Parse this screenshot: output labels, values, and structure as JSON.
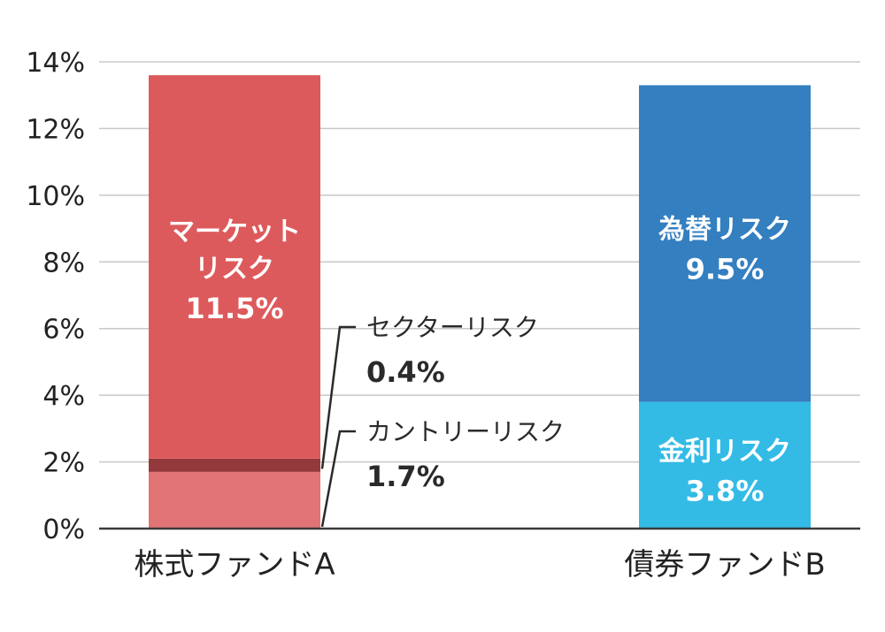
{
  "chart_data": {
    "type": "bar",
    "stacked": true,
    "title": "",
    "xlabel": "",
    "ylabel": "",
    "ylim": [
      0,
      14
    ],
    "yticks": [
      0,
      2,
      4,
      6,
      8,
      10,
      12,
      14
    ],
    "ytick_labels": [
      "0%",
      "2%",
      "4%",
      "6%",
      "8%",
      "10%",
      "12%",
      "14%"
    ],
    "grid": true,
    "categories": [
      "株式ファンドA",
      "債券ファンドB"
    ],
    "bars": [
      {
        "category": "株式ファンドA",
        "segments": [
          {
            "name": "カントリーリスク",
            "value": 1.7,
            "value_label": "1.7%",
            "color": "#e27476",
            "label_style": "callout"
          },
          {
            "name": "セクターリスク",
            "value": 0.4,
            "value_label": "0.4%",
            "color": "#94393b",
            "label_style": "callout"
          },
          {
            "name": "マーケット",
            "name_line2": "リスク",
            "value": 11.5,
            "value_label": "11.5%",
            "color": "#dd5a5c",
            "label_style": "inside"
          }
        ]
      },
      {
        "category": "債券ファンドB",
        "segments": [
          {
            "name": "金利リスク",
            "value": 3.8,
            "value_label": "3.8%",
            "color": "#33bbe6",
            "label_style": "inside"
          },
          {
            "name": "為替リスク",
            "value": 9.5,
            "value_label": "9.5%",
            "color": "#347fc0",
            "label_style": "inside"
          }
        ]
      }
    ]
  }
}
